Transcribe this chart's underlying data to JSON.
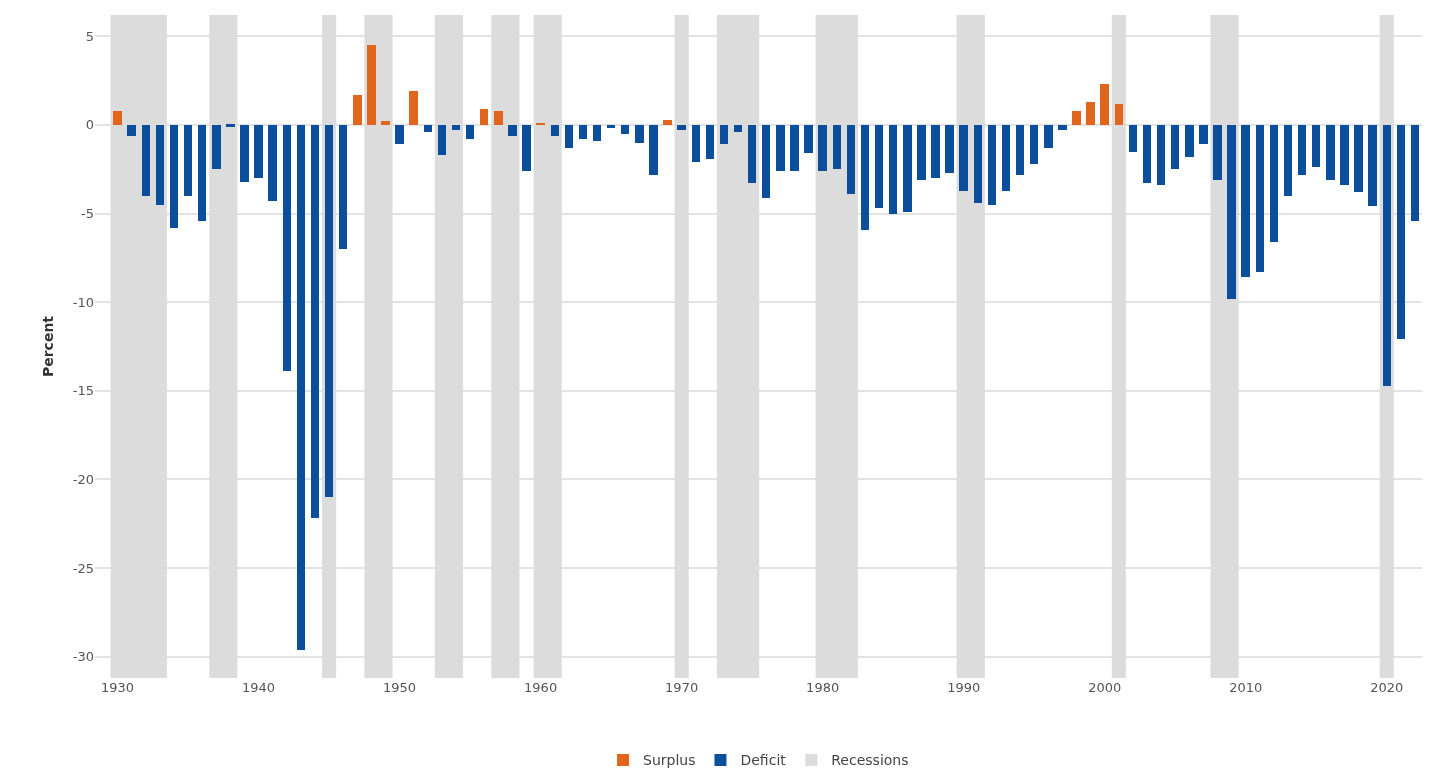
{
  "chart_data": {
    "type": "bar",
    "ylabel": "Percent",
    "xlim": [
      1928.4,
      2022.5
    ],
    "xticks": [
      1930,
      1940,
      1950,
      1960,
      1970,
      1980,
      1990,
      2000,
      2010,
      2020
    ],
    "ylim": [
      -31.2,
      6.2
    ],
    "yticks": [
      5,
      0,
      -5,
      -10,
      -15,
      -20,
      -25,
      -30
    ],
    "grid": "y",
    "legend": "bottom",
    "series": [
      {
        "name": "Surplus",
        "color": "#e0661e",
        "x": [
          1930,
          1947,
          1948,
          1949,
          1951,
          1956,
          1957,
          1960,
          1969,
          1998,
          1999,
          2000,
          2001
        ],
        "values": [
          0.8,
          1.7,
          4.5,
          0.2,
          1.9,
          0.9,
          0.8,
          0.1,
          0.3,
          0.8,
          1.3,
          2.3,
          1.2
        ]
      },
      {
        "name": "Deficit",
        "color": "#0b4f9c",
        "x": [
          1931,
          1932,
          1933,
          1934,
          1935,
          1936,
          1937,
          1938,
          1939,
          1940,
          1941,
          1942,
          1943,
          1944,
          1945,
          1946,
          1950,
          1952,
          1953,
          1954,
          1955,
          1958,
          1959,
          1961,
          1962,
          1963,
          1964,
          1965,
          1966,
          1967,
          1968,
          1970,
          1971,
          1972,
          1973,
          1974,
          1975,
          1976,
          1977,
          1978,
          1979,
          1980,
          1981,
          1982,
          1983,
          1984,
          1985,
          1986,
          1987,
          1988,
          1989,
          1990,
          1991,
          1992,
          1993,
          1994,
          1995,
          1996,
          1997,
          2002,
          2003,
          2004,
          2005,
          2006,
          2007,
          2008,
          2009,
          2010,
          2011,
          2012,
          2013,
          2014,
          2015,
          2016,
          2017,
          2018,
          2019,
          2020,
          2021,
          2022
        ],
        "values": [
          -0.6,
          -4.0,
          -4.5,
          -5.8,
          -4.0,
          -5.4,
          -2.5,
          -0.1,
          -3.2,
          -3.0,
          -4.3,
          -13.9,
          -29.6,
          -22.2,
          -21.0,
          -7.0,
          -1.1,
          -0.4,
          -1.7,
          -0.3,
          -0.8,
          -0.6,
          -2.6,
          -0.6,
          -1.3,
          -0.8,
          -0.9,
          -0.2,
          -0.5,
          -1.0,
          -2.8,
          -0.3,
          -2.1,
          -1.9,
          -1.1,
          -0.4,
          -3.3,
          -4.1,
          -2.6,
          -2.6,
          -1.6,
          -2.6,
          -2.5,
          -3.9,
          -5.9,
          -4.7,
          -5.0,
          -4.9,
          -3.1,
          -3.0,
          -2.7,
          -3.7,
          -4.4,
          -4.5,
          -3.7,
          -2.8,
          -2.2,
          -1.3,
          -0.3,
          -1.5,
          -3.3,
          -3.4,
          -2.5,
          -1.8,
          -1.1,
          -3.1,
          -9.8,
          -8.6,
          -8.3,
          -6.6,
          -4.0,
          -2.8,
          -2.4,
          -3.1,
          -3.4,
          -3.8,
          -4.6,
          -14.7,
          -12.1,
          -5.4
        ]
      }
    ],
    "bands": [
      {
        "axis": "x",
        "from": 1929.5,
        "to": 1933.5,
        "label": "Recessions",
        "color": "#dcdcdc"
      },
      {
        "axis": "x",
        "from": 1936.5,
        "to": 1938.5,
        "color": "#dcdcdc"
      },
      {
        "axis": "x",
        "from": 1944.5,
        "to": 1945.5,
        "color": "#dcdcdc"
      },
      {
        "axis": "x",
        "from": 1947.5,
        "to": 1949.5,
        "color": "#dcdcdc"
      },
      {
        "axis": "x",
        "from": 1952.5,
        "to": 1954.5,
        "color": "#dcdcdc"
      },
      {
        "axis": "x",
        "from": 1956.5,
        "to": 1958.5,
        "color": "#dcdcdc"
      },
      {
        "axis": "x",
        "from": 1959.5,
        "to": 1961.5,
        "color": "#dcdcdc"
      },
      {
        "axis": "x",
        "from": 1969.5,
        "to": 1970.5,
        "color": "#dcdcdc"
      },
      {
        "axis": "x",
        "from": 1972.5,
        "to": 1975.5,
        "color": "#dcdcdc"
      },
      {
        "axis": "x",
        "from": 1979.5,
        "to": 1982.5,
        "color": "#dcdcdc"
      },
      {
        "axis": "x",
        "from": 1989.5,
        "to": 1991.5,
        "color": "#dcdcdc"
      },
      {
        "axis": "x",
        "from": 2000.5,
        "to": 2001.5,
        "color": "#dcdcdc"
      },
      {
        "axis": "x",
        "from": 2007.5,
        "to": 2009.5,
        "color": "#dcdcdc"
      },
      {
        "axis": "x",
        "from": 2019.5,
        "to": 2020.5,
        "color": "#dcdcdc"
      }
    ]
  }
}
